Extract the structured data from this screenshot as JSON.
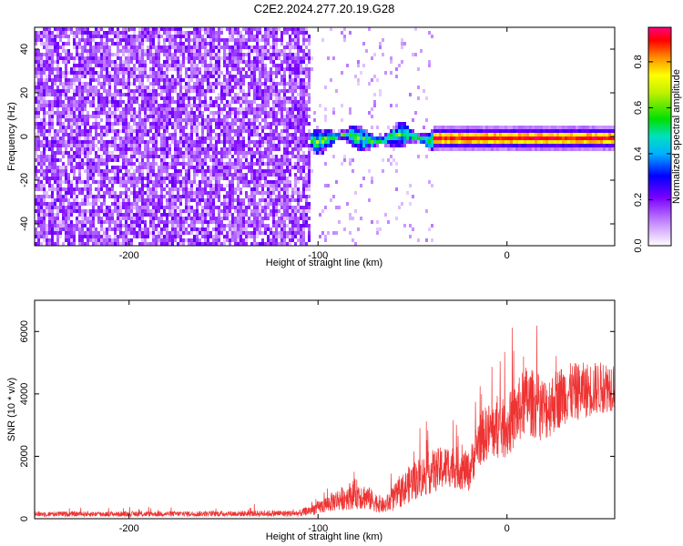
{
  "title": "C2E2.2024.277.20.19.G28",
  "chart_data": [
    {
      "type": "heatmap",
      "xlabel": "Height of straight line (km)",
      "ylabel": "Frequency (Hz)",
      "xlim": [
        -250,
        57
      ],
      "ylim": [
        -50,
        50
      ],
      "xticks": [
        -200,
        -100,
        0
      ],
      "xtick_labels": [
        "-200",
        "-100",
        "0"
      ],
      "yticks": [
        -40,
        -20,
        0,
        20,
        40
      ],
      "ytick_labels": [
        "-40",
        "-20",
        "0",
        "20",
        "40"
      ],
      "colorbar": {
        "label": "Normalized spectral amplitude",
        "range": [
          0,
          0.95
        ],
        "ticks": [
          0.0,
          0.2,
          0.4,
          0.6,
          0.8
        ],
        "tick_labels": [
          "0.0",
          "0.2",
          "0.4",
          "0.6",
          "0.8"
        ]
      },
      "regions": [
        {
          "x_from": -250,
          "x_to": -105,
          "pattern": "broadband noise",
          "amplitude": 0.1
        },
        {
          "x_from": -105,
          "x_to": -40,
          "pattern": "band centered at 0 Hz, width about 8 Hz",
          "amplitude": 0.45
        },
        {
          "x_from": -40,
          "x_to": 57,
          "pattern": "narrow band centered at 0 Hz",
          "amplitude": 0.85
        }
      ],
      "grid": false
    },
    {
      "type": "line",
      "xlabel": "Height of straight line (km)",
      "ylabel": "SNR (10 * v/v)",
      "xlim": [
        -250,
        57
      ],
      "ylim": [
        0,
        7000
      ],
      "xticks": [
        -200,
        -100,
        0
      ],
      "xtick_labels": [
        "-200",
        "-100",
        "0"
      ],
      "yticks": [
        0,
        2000,
        4000,
        6000
      ],
      "ytick_labels": [
        "0",
        "2000",
        "4000",
        "6000"
      ],
      "series": [
        {
          "color": "#ee3333",
          "x": [
            -250,
            -200,
            -150,
            -110,
            -100,
            -90,
            -80,
            -75,
            -65,
            -60,
            -50,
            -40,
            -30,
            -20,
            -15,
            -10,
            0,
            10,
            20,
            30,
            40,
            50,
            57
          ],
          "y": [
            150,
            150,
            160,
            170,
            350,
            600,
            800,
            700,
            400,
            650,
            1200,
            1500,
            1700,
            1500,
            2500,
            2800,
            2900,
            3800,
            3500,
            4000,
            4100,
            4200,
            4300
          ],
          "spread": [
            120,
            120,
            130,
            150,
            300,
            500,
            700,
            600,
            350,
            600,
            900,
            1000,
            1000,
            900,
            1200,
            1300,
            1400,
            1600,
            1500,
            1400,
            1300,
            1200,
            1200
          ]
        }
      ],
      "grid": false
    }
  ]
}
